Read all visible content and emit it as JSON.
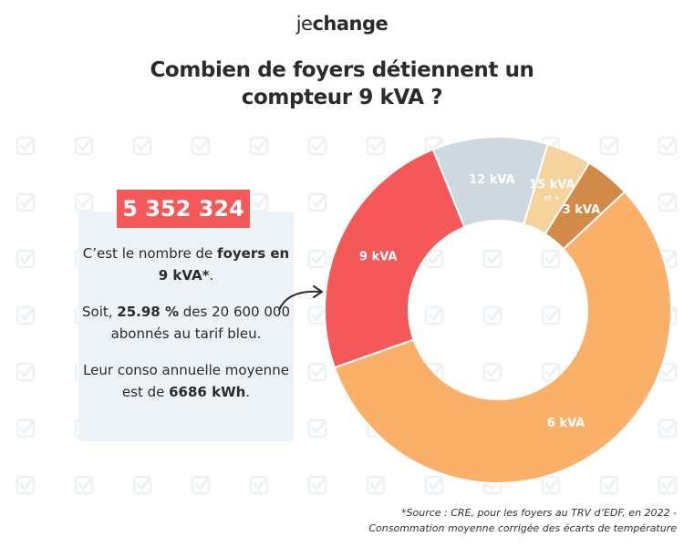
{
  "brand": {
    "prefix": "je",
    "suffix": "change"
  },
  "title": {
    "line1": "Combien de foyers détiennent un",
    "line2": "compteur 9 kVA ?"
  },
  "info": {
    "big_number": "5 352 324",
    "p1_text": "C’est le nombre de ",
    "p1_bold": "foyers en 9 kVA*",
    "p1_end": ".",
    "p2_text": "Soit, ",
    "p2_bold": "25.98 %",
    "p2_rest": " des 20 600 000 abonnés au tarif bleu.",
    "p3_text": "Leur conso annuelle moyenne est de ",
    "p3_bold": "6686 kWh",
    "p3_end": "."
  },
  "source": {
    "line1": "*Source : CRE, pour les foyers au TRV d’EDF, en 2022 -",
    "line2": "Consommation moyenne corrigée des écarts de température"
  },
  "chart_data": {
    "type": "pie",
    "style": "donut",
    "title": "Combien de foyers détiennent un compteur 9 kVA ?",
    "slices": [
      {
        "label": "6 kVA",
        "sublabel": "",
        "value": 60.5,
        "color": "#fbb06a",
        "text_color": "#ffffff"
      },
      {
        "label": "9 kVA",
        "sublabel": "",
        "value": 25.98,
        "color": "#f55858",
        "text_color": "#ffffff"
      },
      {
        "label": "12 kVA",
        "sublabel": "",
        "value": 11.5,
        "color": "#cfd8df",
        "text_color": "#ffffff"
      },
      {
        "label": "15 kVA",
        "sublabel": "et +",
        "value": 4.5,
        "color": "#f4d49c",
        "text_color": "#ffffff"
      },
      {
        "label": "3 kVA",
        "sublabel": "",
        "value": 4.5,
        "color": "#d18a47",
        "text_color": "#ffffff"
      }
    ],
    "start_angle_deg": 47,
    "direction": "clockwise",
    "legend": "none"
  },
  "colors": {
    "accent": "#f55858",
    "card_bg": "#edf2f6",
    "watermark": "#edf1f5"
  },
  "icons": {
    "watermark": "check-icon",
    "arrow": "arrow-icon"
  }
}
